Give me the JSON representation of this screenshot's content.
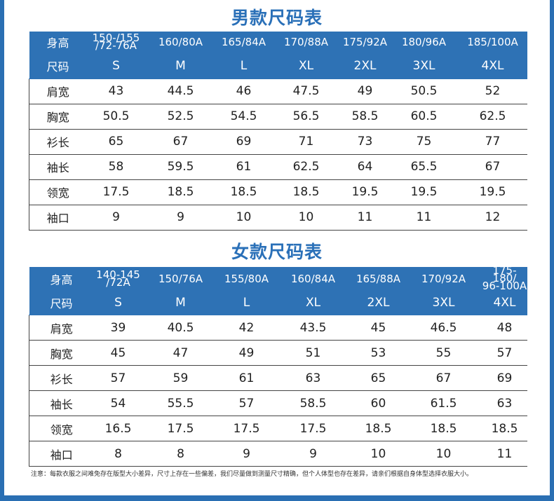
{
  "men": {
    "title": "男款尺码表",
    "height_label": "身高",
    "size_label": "尺码",
    "heights": [
      "150-/155\n/72-76A",
      "160/80A",
      "165/84A",
      "170/88A",
      "175/92A",
      "180/96A",
      "185/100A"
    ],
    "sizes": [
      "S",
      "M",
      "L",
      "XL",
      "2XL",
      "3XL",
      "4XL"
    ],
    "rows": [
      {
        "label": "肩宽",
        "values": [
          "43",
          "44.5",
          "46",
          "47.5",
          "49",
          "50.5",
          "52"
        ]
      },
      {
        "label": "胸宽",
        "values": [
          "50.5",
          "52.5",
          "54.5",
          "56.5",
          "58.5",
          "60.5",
          "62.5"
        ]
      },
      {
        "label": "衫长",
        "values": [
          "65",
          "67",
          "69",
          "71",
          "73",
          "75",
          "77"
        ]
      },
      {
        "label": "袖长",
        "values": [
          "58",
          "59.5",
          "61",
          "62.5",
          "64",
          "65.5",
          "67"
        ]
      },
      {
        "label": "领宽",
        "values": [
          "17.5",
          "18.5",
          "18.5",
          "18.5",
          "19.5",
          "19.5",
          "19.5"
        ]
      },
      {
        "label": "袖口",
        "values": [
          "9",
          "9",
          "10",
          "10",
          "11",
          "11",
          "12"
        ]
      }
    ]
  },
  "women": {
    "title": "女款尺码表",
    "height_label": "身高",
    "size_label": "尺码",
    "heights": [
      "140-145\n/72A",
      "150/76A",
      "155/80A",
      "160/84A",
      "165/88A",
      "170/92A",
      "175-180/\n96-100A"
    ],
    "sizes": [
      "S",
      "M",
      "L",
      "XL",
      "2XL",
      "3XL",
      "4XL"
    ],
    "rows": [
      {
        "label": "肩宽",
        "values": [
          "39",
          "40.5",
          "42",
          "43.5",
          "45",
          "46.5",
          "48"
        ]
      },
      {
        "label": "胸宽",
        "values": [
          "45",
          "47",
          "49",
          "51",
          "53",
          "55",
          "57"
        ]
      },
      {
        "label": "衫长",
        "values": [
          "57",
          "59",
          "61",
          "63",
          "65",
          "67",
          "69"
        ]
      },
      {
        "label": "袖长",
        "values": [
          "54",
          "55.5",
          "57",
          "58.5",
          "60",
          "61.5",
          "63"
        ]
      },
      {
        "label": "领宽",
        "values": [
          "16.5",
          "17.5",
          "17.5",
          "17.5",
          "18.5",
          "18.5",
          "18.5"
        ]
      },
      {
        "label": "袖口",
        "values": [
          "8",
          "8",
          "9",
          "9",
          "10",
          "10",
          "11"
        ]
      }
    ]
  },
  "note": "注意：每款衣服之间难免存在版型大小差异，尺寸上存在一些偏差，我们尽量做到测量尺寸精确，但个人体型也存在差异，请亲们根据自身体型选择衣服大小。",
  "colors": {
    "accent": "#2e72b5",
    "title": "#2a70b8"
  }
}
